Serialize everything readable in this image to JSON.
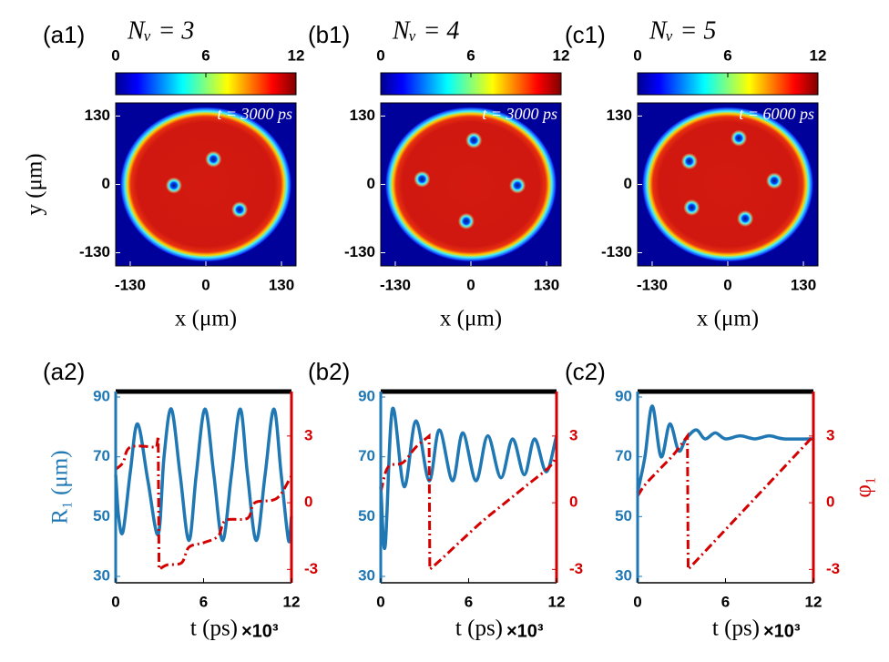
{
  "chart_data": [
    {
      "type": "heatmap",
      "label": "(a1)",
      "title": "Nᵥ = 3",
      "time_label": "t = 3000 ps",
      "xlabel": "x (μm)",
      "ylabel": "y (μm)",
      "xlim": [
        -155,
        155
      ],
      "ylim": [
        -155,
        155
      ],
      "xticks": [
        -130,
        0,
        130
      ],
      "yticks": [
        -130,
        0,
        130
      ],
      "colorbar": {
        "lim": [
          0,
          12
        ],
        "ticks": [
          0,
          6,
          12
        ]
      },
      "vortices": {
        "x": [
          -55,
          13,
          58
        ],
        "y": [
          -2,
          48,
          -48
        ]
      }
    },
    {
      "type": "heatmap",
      "label": "(b1)",
      "title": "Nᵥ = 4",
      "time_label": "t = 3000 ps",
      "xlabel": "x (μm)",
      "xlim": [
        -155,
        155
      ],
      "ylim": [
        -155,
        155
      ],
      "xticks": [
        -130,
        0,
        130
      ],
      "yticks": [
        -130,
        0,
        130
      ],
      "colorbar": {
        "lim": [
          0,
          12
        ],
        "ticks": [
          0,
          6,
          12
        ]
      },
      "vortices": {
        "x": [
          5,
          -84,
          -8,
          80
        ],
        "y": [
          84,
          10,
          -70,
          -2
        ]
      }
    },
    {
      "type": "heatmap",
      "label": "(c1)",
      "title": "Nᵥ = 5",
      "time_label": "t = 6000 ps",
      "xlabel": "x (μm)",
      "xlim": [
        -155,
        155
      ],
      "ylim": [
        -155,
        155
      ],
      "xticks": [
        -130,
        0,
        130
      ],
      "yticks": [
        -130,
        0,
        130
      ],
      "colorbar": {
        "lim": [
          0,
          12
        ],
        "ticks": [
          0,
          6,
          12
        ]
      },
      "vortices": {
        "x": [
          -66,
          19,
          80,
          30,
          -62
        ],
        "y": [
          44,
          88,
          7,
          -65,
          -44
        ]
      }
    },
    {
      "type": "line",
      "label": "(a2)",
      "xlabel": "t (ps)",
      "x_multiplier": "×10³",
      "ylabel": "R₁ (μm)",
      "xlim": [
        0,
        12
      ],
      "ylim": [
        30,
        90
      ],
      "y2lim": [
        -3.6,
        5
      ],
      "xticks": [
        0,
        6,
        12
      ],
      "yticks": [
        30,
        50,
        70,
        90
      ],
      "y2ticks": [
        -3,
        0,
        3
      ],
      "series": [
        {
          "name": "R1",
          "color": "#1f77b4",
          "x": [
            0,
            0.2,
            0.5,
            1.0,
            1.5,
            2.2,
            2.9,
            3.3,
            3.8,
            4.4,
            5.0,
            5.5,
            6.1,
            6.7,
            7.3,
            7.9,
            8.5,
            9.0,
            9.6,
            10.2,
            10.8,
            11.3,
            11.8,
            12
          ],
          "values": [
            64,
            50,
            45,
            65,
            81,
            62,
            44,
            70,
            86,
            64,
            42,
            64,
            86,
            64,
            42,
            64,
            86,
            64,
            42,
            64,
            86,
            64,
            42,
            50
          ]
        },
        {
          "name": "phi1",
          "color": "#d40000",
          "axis": "y2",
          "x": [
            0,
            0.5,
            1,
            2.8,
            2.9,
            2.96,
            3.5,
            4.5,
            5,
            6,
            7,
            7.5,
            9,
            9.5,
            11,
            12
          ],
          "values": [
            1.5,
            1.8,
            2.5,
            2.5,
            3,
            -3,
            -2.8,
            -2.7,
            -2.0,
            -1.8,
            -1.5,
            -0.8,
            -0.7,
            0,
            0.2,
            1.2
          ]
        }
      ]
    },
    {
      "type": "line",
      "label": "(b2)",
      "xlabel": "t (ps)",
      "x_multiplier": "×10³",
      "xlim": [
        0,
        12
      ],
      "ylim": [
        30,
        90
      ],
      "y2lim": [
        -3.6,
        5
      ],
      "xticks": [
        0,
        6,
        12
      ],
      "yticks": [
        30,
        50,
        70,
        90
      ],
      "y2ticks": [
        -3,
        0,
        3
      ],
      "series": [
        {
          "name": "R1",
          "color": "#1f77b4",
          "x": [
            0,
            0.3,
            0.8,
            1.6,
            2.4,
            3.3,
            4.0,
            4.9,
            5.6,
            6.5,
            7.3,
            8.2,
            9.0,
            9.8,
            10.5,
            11.3,
            12
          ],
          "values": [
            60,
            40,
            86,
            60,
            82,
            62,
            79,
            62,
            78,
            62,
            77,
            63,
            76,
            64,
            76,
            65,
            77
          ]
        },
        {
          "name": "phi1",
          "color": "#d40000",
          "axis": "y2",
          "x": [
            0,
            0.5,
            1.5,
            2.4,
            3.3,
            3.35,
            4.2,
            5.5,
            7,
            8.5,
            10,
            11.5,
            12
          ],
          "values": [
            0.5,
            1.6,
            1.8,
            2.5,
            3,
            -3,
            -2.5,
            -1.7,
            -0.8,
            0,
            0.8,
            1.6,
            2.1
          ]
        }
      ]
    },
    {
      "type": "line",
      "label": "(c2)",
      "xlabel": "t (ps)",
      "x_multiplier": "×10³",
      "y2label": "φ₁",
      "xlim": [
        0,
        12
      ],
      "ylim": [
        30,
        90
      ],
      "y2lim": [
        -3.6,
        5
      ],
      "xticks": [
        0,
        6,
        12
      ],
      "yticks": [
        30,
        50,
        70,
        90
      ],
      "y2ticks": [
        -3,
        0,
        3
      ],
      "series": [
        {
          "name": "R1",
          "color": "#1f77b4",
          "x": [
            0,
            0.5,
            1.0,
            1.6,
            2.2,
            2.8,
            3.3,
            4.0,
            4.6,
            5.3,
            6,
            7,
            8,
            9,
            10,
            12
          ],
          "values": [
            58,
            70,
            87,
            70,
            81,
            72,
            76,
            79,
            76,
            78,
            76,
            77,
            76,
            77,
            76,
            76
          ]
        },
        {
          "name": "phi1",
          "color": "#d40000",
          "axis": "y2",
          "x": [
            0,
            0.5,
            1.5,
            2.5,
            3.4,
            3.45,
            12
          ],
          "values": [
            0.3,
            0.8,
            1.5,
            2.2,
            3.0,
            -3.0,
            3.0
          ]
        }
      ]
    }
  ]
}
